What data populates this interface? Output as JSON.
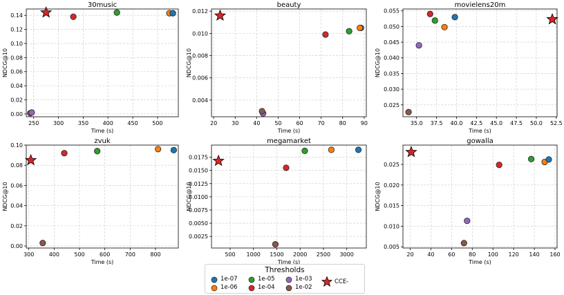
{
  "figure": {
    "xlabel": "Time (s)",
    "ylabel": "NDCG@10",
    "threshold_colors": {
      "1e-07": "#1f77b4",
      "1e-06": "#ff7f0e",
      "1e-05": "#2ca02c",
      "1e-04": "#d62728",
      "1e-03": "#9467bd",
      "1e-02": "#8c564b"
    },
    "cce_color": "#d62728"
  },
  "legend": {
    "title": "Thresholds",
    "items": [
      {
        "label": "1e-07",
        "color": "#1f77b4",
        "marker": "circle"
      },
      {
        "label": "1e-06",
        "color": "#ff7f0e",
        "marker": "circle"
      },
      {
        "label": "1e-05",
        "color": "#2ca02c",
        "marker": "circle"
      },
      {
        "label": "1e-04",
        "color": "#d62728",
        "marker": "circle"
      },
      {
        "label": "1e-03",
        "color": "#9467bd",
        "marker": "circle"
      },
      {
        "label": "1e-02",
        "color": "#8c564b",
        "marker": "circle"
      },
      {
        "label": "CCE-",
        "color": "#d62728",
        "marker": "star"
      }
    ]
  },
  "chart_data": [
    {
      "type": "scatter",
      "title": "30music",
      "xlabel": "Time (s)",
      "ylabel": "NDCG@10",
      "xlim": [
        235,
        542
      ],
      "ylim": [
        -0.004,
        0.149
      ],
      "xticks": [
        250,
        300,
        350,
        400,
        450,
        500
      ],
      "yticks": [
        0.0,
        0.02,
        0.04,
        0.06,
        0.08,
        0.1,
        0.12,
        0.14
      ],
      "ytick_labels": [
        "0.00",
        "0.02",
        "0.04",
        "0.06",
        "0.08",
        "0.10",
        "0.12",
        "0.14"
      ],
      "points": [
        {
          "threshold": "1e-02",
          "x": 243,
          "y": 0.001
        },
        {
          "threshold": "1e-03",
          "x": 246,
          "y": 0.002
        },
        {
          "threshold": "1e-04",
          "x": 330,
          "y": 0.138
        },
        {
          "threshold": "1e-05",
          "x": 418,
          "y": 0.144
        },
        {
          "threshold": "1e-06",
          "x": 524,
          "y": 0.143
        },
        {
          "threshold": "1e-07",
          "x": 531,
          "y": 0.143
        }
      ],
      "cce": {
        "label": "CCE-",
        "x": 275,
        "y": 0.144
      }
    },
    {
      "type": "scatter",
      "title": "beauty",
      "xlabel": "Time (s)",
      "ylabel": "NDCG@10",
      "xlim": [
        19,
        91
      ],
      "ylim": [
        0.0025,
        0.0122
      ],
      "xticks": [
        20,
        30,
        40,
        50,
        60,
        70,
        80,
        90
      ],
      "yticks": [
        0.004,
        0.006,
        0.008,
        0.01,
        0.012
      ],
      "ytick_labels": [
        "0.004",
        "0.006",
        "0.008",
        "0.010",
        "0.012"
      ],
      "points": [
        {
          "threshold": "1e-03",
          "x": 43,
          "y": 0.0028
        },
        {
          "threshold": "1e-02",
          "x": 42.5,
          "y": 0.003
        },
        {
          "threshold": "1e-04",
          "x": 72,
          "y": 0.0099
        },
        {
          "threshold": "1e-05",
          "x": 83,
          "y": 0.0102
        },
        {
          "threshold": "1e-07",
          "x": 88.5,
          "y": 0.0105
        },
        {
          "threshold": "1e-06",
          "x": 88,
          "y": 0.0105
        }
      ],
      "cce": {
        "label": "CCE-",
        "x": 23,
        "y": 0.0116
      }
    },
    {
      "type": "scatter",
      "title": "movielens20m",
      "xlabel": "Time (s)",
      "ylabel": "NDCG@10",
      "xlim": [
        33.3,
        52.6
      ],
      "ylim": [
        0.0212,
        0.0556
      ],
      "xticks": [
        35.0,
        37.5,
        40.0,
        42.5,
        45.0,
        47.5,
        50.0,
        52.5
      ],
      "xtick_labels": [
        "35.0",
        "37.5",
        "40.0",
        "42.5",
        "45.0",
        "47.5",
        "50.0",
        "52.5"
      ],
      "yticks": [
        0.025,
        0.03,
        0.035,
        0.04,
        0.045,
        0.05,
        0.055
      ],
      "ytick_labels": [
        "0.025",
        "0.030",
        "0.035",
        "0.040",
        "0.045",
        "0.050",
        "0.055"
      ],
      "points": [
        {
          "threshold": "1e-02",
          "x": 34.0,
          "y": 0.0227
        },
        {
          "threshold": "1e-03",
          "x": 35.3,
          "y": 0.044
        },
        {
          "threshold": "1e-04",
          "x": 36.7,
          "y": 0.054
        },
        {
          "threshold": "1e-05",
          "x": 37.3,
          "y": 0.0519
        },
        {
          "threshold": "1e-06",
          "x": 38.5,
          "y": 0.0498
        },
        {
          "threshold": "1e-07",
          "x": 39.8,
          "y": 0.053
        }
      ],
      "cce": {
        "label": "CCE-",
        "x": 52.0,
        "y": 0.0523
      }
    },
    {
      "type": "scatter",
      "title": "zvuk",
      "xlabel": "Time (s)",
      "ylabel": "NDCG@10",
      "xlim": [
        290,
        890
      ],
      "ylim": [
        -0.002,
        0.1
      ],
      "xticks": [
        300,
        400,
        500,
        600,
        700,
        800
      ],
      "yticks": [
        0.0,
        0.02,
        0.04,
        0.06,
        0.08,
        0.1
      ],
      "ytick_labels": [
        "0.00",
        "0.02",
        "0.04",
        "0.06",
        "0.08",
        "0.10"
      ],
      "points": [
        {
          "threshold": "1e-02",
          "x": 355,
          "y": 0.003
        },
        {
          "threshold": "1e-04",
          "x": 440,
          "y": 0.092
        },
        {
          "threshold": "1e-05",
          "x": 570,
          "y": 0.094
        },
        {
          "threshold": "1e-06",
          "x": 810,
          "y": 0.096
        },
        {
          "threshold": "1e-07",
          "x": 872,
          "y": 0.095
        }
      ],
      "cce": {
        "label": "CCE-",
        "x": 308,
        "y": 0.085
      }
    },
    {
      "type": "scatter",
      "title": "megamarket",
      "xlabel": "Time (s)",
      "ylabel": "NDCG@10",
      "xlim": [
        100,
        3420
      ],
      "ylim": [
        0.0003,
        0.0198
      ],
      "xticks": [
        500,
        1000,
        1500,
        2000,
        2500,
        3000
      ],
      "yticks": [
        0.0025,
        0.005,
        0.0075,
        0.01,
        0.0125,
        0.015,
        0.0175
      ],
      "ytick_labels": [
        "0.0025",
        "0.0050",
        "0.0075",
        "0.0100",
        "0.0125",
        "0.0150",
        "0.0175"
      ],
      "points": [
        {
          "threshold": "1e-02",
          "x": 1470,
          "y": 0.001
        },
        {
          "threshold": "1e-04",
          "x": 1700,
          "y": 0.0155
        },
        {
          "threshold": "1e-05",
          "x": 2100,
          "y": 0.0187
        },
        {
          "threshold": "1e-06",
          "x": 2670,
          "y": 0.0189
        },
        {
          "threshold": "1e-07",
          "x": 3250,
          "y": 0.0189
        }
      ],
      "cce": {
        "label": "CCE-",
        "x": 250,
        "y": 0.0168
      }
    },
    {
      "type": "scatter",
      "title": "gowalla",
      "xlabel": "Time (s)",
      "ylabel": "NDCG@10",
      "xlim": [
        13,
        162
      ],
      "ylim": [
        0.0047,
        0.0297
      ],
      "xticks": [
        20,
        40,
        60,
        80,
        100,
        120,
        140,
        160
      ],
      "yticks": [
        0.005,
        0.01,
        0.015,
        0.02,
        0.025
      ],
      "ytick_labels": [
        "0.005",
        "0.010",
        "0.015",
        "0.020",
        "0.025"
      ],
      "points": [
        {
          "threshold": "1e-02",
          "x": 72,
          "y": 0.0059
        },
        {
          "threshold": "1e-03",
          "x": 75,
          "y": 0.0113
        },
        {
          "threshold": "1e-04",
          "x": 106,
          "y": 0.0249
        },
        {
          "threshold": "1e-05",
          "x": 137,
          "y": 0.0263
        },
        {
          "threshold": "1e-06",
          "x": 150,
          "y": 0.0256
        },
        {
          "threshold": "1e-07",
          "x": 154,
          "y": 0.0262
        }
      ],
      "cce": {
        "label": "CCE-",
        "x": 21,
        "y": 0.028
      }
    }
  ]
}
